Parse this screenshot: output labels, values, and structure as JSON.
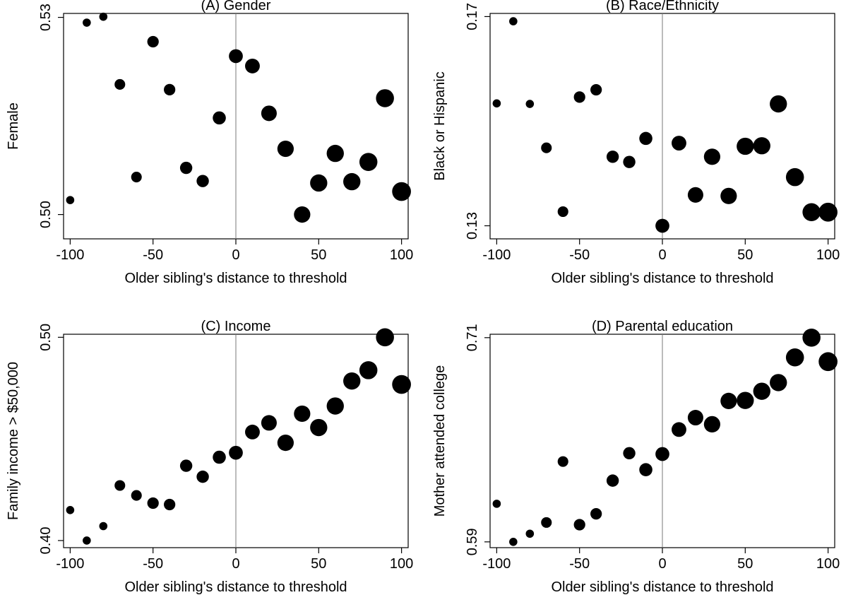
{
  "chart_data": [
    {
      "type": "scatter",
      "title": "(A) Gender",
      "xlabel": "Older sibling's distance to threshold",
      "ylabel": "Female",
      "xlim": [
        -104,
        104
      ],
      "ylim": [
        0.4963,
        0.5306
      ],
      "xticks": [
        "-100",
        "-50",
        "0",
        "50",
        "100"
      ],
      "yticks": [
        "0.50",
        "0.53"
      ],
      "reference_line_x": 0,
      "grid": false,
      "x": [
        -100,
        -90,
        -80,
        -70,
        -60,
        -50,
        -40,
        -30,
        -20,
        -10,
        0,
        10,
        20,
        30,
        40,
        50,
        60,
        70,
        80,
        90,
        100
      ],
      "y": [
        0.5022,
        0.5292,
        0.5301,
        0.5198,
        0.5057,
        0.5263,
        0.519,
        0.5071,
        0.5051,
        0.5147,
        0.5241,
        0.5226,
        0.5154,
        0.51,
        0.5,
        0.5048,
        0.5093,
        0.505,
        0.508,
        0.5177,
        0.5035
      ],
      "size": [
        1,
        1,
        1,
        1.3,
        1.3,
        1.4,
        1.4,
        1.5,
        1.5,
        1.6,
        1.7,
        1.8,
        1.9,
        2,
        2,
        2.1,
        2.1,
        2.1,
        2.2,
        2.2,
        2.3
      ]
    },
    {
      "type": "scatter",
      "title": "(B) Race/Ethnicity",
      "xlabel": "Older sibling's distance to threshold",
      "ylabel": "Black or Hispanic",
      "xlim": [
        -104,
        104
      ],
      "ylim": [
        0.1275,
        0.1706
      ],
      "xticks": [
        "-100",
        "-50",
        "0",
        "50",
        "100"
      ],
      "yticks": [
        "0.13",
        "0.17"
      ],
      "reference_line_x": 0,
      "grid": false,
      "x": [
        -100,
        -90,
        -80,
        -70,
        -60,
        -50,
        -40,
        -30,
        -20,
        -10,
        0,
        10,
        20,
        30,
        40,
        50,
        60,
        70,
        80,
        90,
        100
      ],
      "y": [
        0.1534,
        0.1691,
        0.1533,
        0.1449,
        0.1327,
        0.1546,
        0.156,
        0.1432,
        0.1422,
        0.1467,
        0.13,
        0.1458,
        0.1359,
        0.1432,
        0.1357,
        0.1452,
        0.1453,
        0.1533,
        0.1393,
        0.1326,
        0.1326
      ],
      "size": [
        1,
        1,
        1,
        1.3,
        1.3,
        1.4,
        1.4,
        1.5,
        1.5,
        1.6,
        1.7,
        1.8,
        1.9,
        2,
        2,
        2.1,
        2.1,
        2.1,
        2.2,
        2.2,
        2.3
      ]
    },
    {
      "type": "scatter",
      "title": "(C) Income",
      "xlabel": "Older sibling's distance to threshold",
      "ylabel": "Family income > $50,000",
      "xlim": [
        -104,
        104
      ],
      "ylim": [
        0.3965,
        0.5015
      ],
      "xticks": [
        "-100",
        "-50",
        "0",
        "50",
        "100"
      ],
      "yticks": [
        "0.40",
        "0.50"
      ],
      "reference_line_x": 0,
      "grid": false,
      "x": [
        -100,
        -90,
        -80,
        -70,
        -60,
        -50,
        -40,
        -30,
        -20,
        -10,
        0,
        10,
        20,
        30,
        40,
        50,
        60,
        70,
        80,
        90,
        100
      ],
      "y": [
        0.415,
        0.4,
        0.4071,
        0.4271,
        0.4222,
        0.4184,
        0.4177,
        0.4368,
        0.4314,
        0.441,
        0.4432,
        0.4534,
        0.4579,
        0.4481,
        0.4624,
        0.4556,
        0.4662,
        0.4785,
        0.4838,
        0.5,
        0.4768
      ],
      "size": [
        1,
        1,
        1,
        1.3,
        1.3,
        1.4,
        1.4,
        1.5,
        1.5,
        1.6,
        1.7,
        1.8,
        1.9,
        2,
        2,
        2.1,
        2.1,
        2.1,
        2.2,
        2.2,
        2.3
      ]
    },
    {
      "type": "scatter",
      "title": "(D) Parental education",
      "xlabel": "Older sibling's distance to threshold",
      "ylabel": "Mother attended college",
      "xlim": [
        -104,
        104
      ],
      "ylim": [
        0.5866,
        0.712
      ],
      "xticks": [
        "-100",
        "-50",
        "0",
        "50",
        "100"
      ],
      "yticks": [
        "0.59",
        "0.71"
      ],
      "reference_line_x": 0,
      "grid": false,
      "x": [
        -100,
        -90,
        -80,
        -70,
        -60,
        -50,
        -40,
        -30,
        -20,
        -10,
        0,
        10,
        20,
        30,
        40,
        50,
        60,
        70,
        80,
        90,
        100
      ],
      "y": [
        0.6124,
        0.59,
        0.5948,
        0.6014,
        0.6372,
        0.6001,
        0.6065,
        0.626,
        0.6421,
        0.6324,
        0.6416,
        0.656,
        0.663,
        0.6591,
        0.6728,
        0.6731,
        0.6785,
        0.6836,
        0.6984,
        0.71,
        0.6959
      ],
      "size": [
        1,
        1,
        1,
        1.3,
        1.3,
        1.4,
        1.4,
        1.5,
        1.5,
        1.6,
        1.7,
        1.8,
        1.9,
        2,
        2,
        2.1,
        2.1,
        2.1,
        2.2,
        2.2,
        2.3
      ]
    }
  ]
}
